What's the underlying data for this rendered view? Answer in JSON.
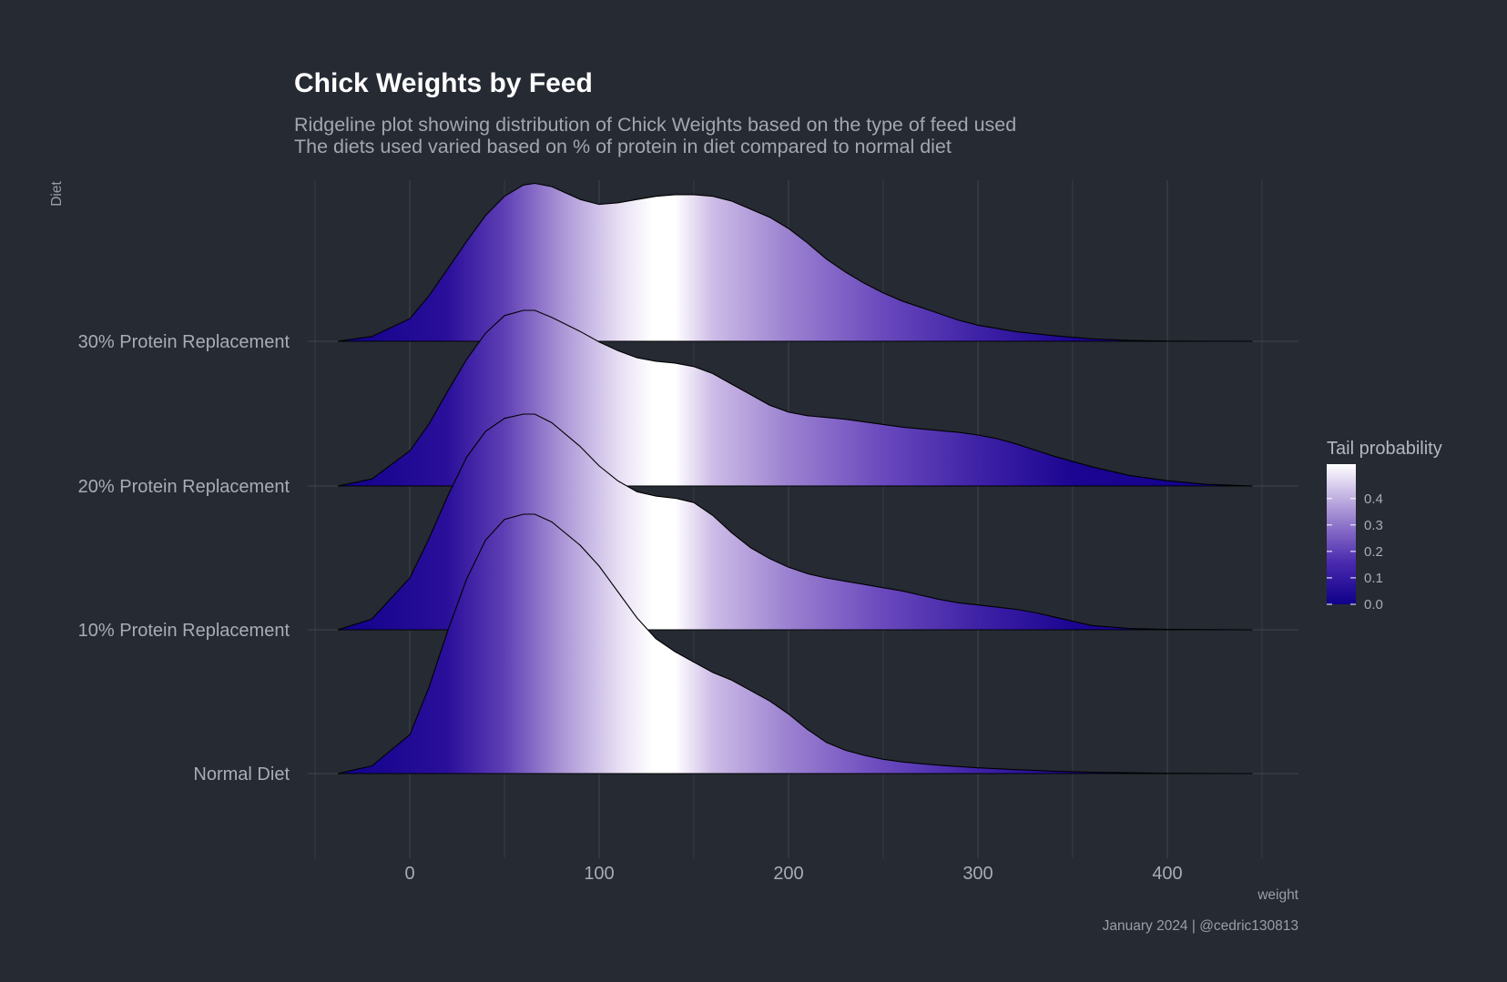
{
  "chart_data": {
    "type": "ridgeline",
    "title": "Chick Weights by Feed",
    "subtitle_lines": [
      "Ridgeline plot showing distribution of Chick Weights based on the type of feed used",
      "The diets used varied based on % of protein in diet compared to normal diet"
    ],
    "xlabel": "weight",
    "ylabel": "Diet",
    "caption": "January 2024 | @cedric130813",
    "x_ticks": [
      0,
      100,
      200,
      300,
      400
    ],
    "xlim": [
      -50,
      450
    ],
    "grid": true,
    "fill_variable": "Tail probability",
    "color_scale": {
      "low": "#10008a",
      "mid": "#7b5cc4",
      "high": "#ffffff"
    },
    "legend": {
      "title": "Tail probability",
      "position": "right",
      "ticks": [
        "0.0",
        "0.1",
        "0.2",
        "0.3",
        "0.4"
      ]
    },
    "categories": [
      "Normal Diet",
      "10% Protein Replacement",
      "20% Protein Replacement",
      "30% Protein Replacement"
    ],
    "series": [
      {
        "name": "Normal Diet",
        "density_x": [
          -38,
          -20,
          0,
          10,
          20,
          30,
          40,
          50,
          60,
          66,
          75,
          90,
          100,
          110,
          120,
          130,
          140,
          150,
          160,
          170,
          180,
          190,
          200,
          210,
          220,
          230,
          240,
          250,
          260,
          270,
          280,
          290,
          300,
          320,
          340,
          360,
          380,
          400,
          445
        ],
        "density_y": [
          0.0,
          0.03,
          0.15,
          0.33,
          0.55,
          0.75,
          0.9,
          0.98,
          1.0,
          1.0,
          0.97,
          0.88,
          0.8,
          0.7,
          0.6,
          0.52,
          0.47,
          0.43,
          0.39,
          0.36,
          0.32,
          0.28,
          0.23,
          0.17,
          0.12,
          0.09,
          0.07,
          0.055,
          0.045,
          0.038,
          0.032,
          0.027,
          0.022,
          0.015,
          0.009,
          0.005,
          0.003,
          0.001,
          0.0
        ]
      },
      {
        "name": "10% Protein Replacement",
        "density_x": [
          -38,
          -20,
          0,
          10,
          20,
          30,
          40,
          50,
          60,
          66,
          75,
          90,
          100,
          110,
          120,
          130,
          140,
          150,
          160,
          170,
          180,
          190,
          200,
          210,
          220,
          230,
          240,
          250,
          260,
          270,
          280,
          290,
          300,
          310,
          320,
          330,
          340,
          350,
          360,
          380,
          400,
          445
        ],
        "density_y": [
          0.0,
          0.05,
          0.24,
          0.42,
          0.62,
          0.8,
          0.92,
          0.98,
          1.0,
          1.0,
          0.96,
          0.85,
          0.76,
          0.69,
          0.64,
          0.62,
          0.61,
          0.59,
          0.53,
          0.45,
          0.38,
          0.33,
          0.29,
          0.26,
          0.24,
          0.225,
          0.21,
          0.195,
          0.18,
          0.16,
          0.14,
          0.125,
          0.115,
          0.105,
          0.095,
          0.08,
          0.06,
          0.04,
          0.02,
          0.006,
          0.002,
          0.0
        ]
      },
      {
        "name": "20% Protein Replacement",
        "density_x": [
          -38,
          -20,
          0,
          10,
          20,
          30,
          40,
          50,
          60,
          66,
          75,
          90,
          100,
          110,
          120,
          130,
          140,
          150,
          160,
          170,
          180,
          190,
          200,
          210,
          220,
          230,
          240,
          250,
          260,
          270,
          280,
          290,
          300,
          310,
          320,
          340,
          360,
          380,
          400,
          420,
          445
        ],
        "density_y": [
          0.0,
          0.04,
          0.2,
          0.35,
          0.54,
          0.72,
          0.87,
          0.97,
          1.0,
          1.0,
          0.96,
          0.88,
          0.82,
          0.77,
          0.73,
          0.71,
          0.7,
          0.68,
          0.64,
          0.58,
          0.52,
          0.46,
          0.42,
          0.4,
          0.39,
          0.38,
          0.365,
          0.35,
          0.335,
          0.325,
          0.315,
          0.305,
          0.29,
          0.27,
          0.24,
          0.17,
          0.11,
          0.06,
          0.03,
          0.01,
          0.0
        ]
      },
      {
        "name": "30% Protein Replacement",
        "density_x": [
          -38,
          -20,
          0,
          10,
          20,
          30,
          40,
          50,
          60,
          66,
          75,
          90,
          100,
          110,
          120,
          130,
          140,
          150,
          160,
          170,
          180,
          190,
          200,
          210,
          220,
          230,
          240,
          250,
          260,
          270,
          280,
          290,
          300,
          320,
          340,
          360,
          380,
          400,
          445
        ],
        "density_y": [
          0.0,
          0.03,
          0.14,
          0.28,
          0.45,
          0.62,
          0.78,
          0.9,
          0.97,
          0.98,
          0.96,
          0.88,
          0.85,
          0.86,
          0.88,
          0.9,
          0.91,
          0.91,
          0.9,
          0.87,
          0.82,
          0.77,
          0.7,
          0.61,
          0.51,
          0.43,
          0.36,
          0.3,
          0.25,
          0.21,
          0.17,
          0.13,
          0.1,
          0.06,
          0.035,
          0.015,
          0.005,
          0.001,
          0.0
        ]
      }
    ]
  }
}
